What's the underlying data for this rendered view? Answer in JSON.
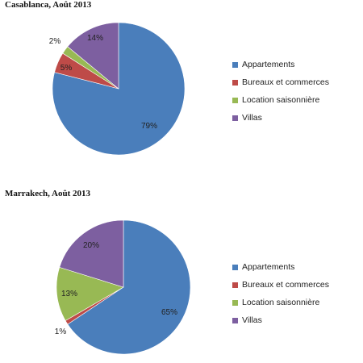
{
  "chart_data": [
    {
      "type": "pie",
      "title": "Casablanca, Août 2013",
      "categories": [
        "Appartements",
        "Bureaux et commerces",
        "Location saisonnière",
        "Villas"
      ],
      "values": [
        79,
        5,
        2,
        14
      ],
      "labels": [
        "79%",
        "5%",
        "2%",
        "14%"
      ],
      "colors": [
        "#4a7ebb",
        "#be4b48",
        "#98b954",
        "#7d5fa0"
      ],
      "legend_position": "right"
    },
    {
      "type": "pie",
      "title": "Marrakech, Août 2013",
      "categories": [
        "Appartements",
        "Bureaux et commerces",
        "Location saisonnière",
        "Villas"
      ],
      "values": [
        65,
        1,
        13,
        20
      ],
      "labels": [
        "65%",
        "1%",
        "13%",
        "20%"
      ],
      "colors": [
        "#4a7ebb",
        "#be4b48",
        "#98b954",
        "#7d5fa0"
      ],
      "legend_position": "right"
    }
  ]
}
